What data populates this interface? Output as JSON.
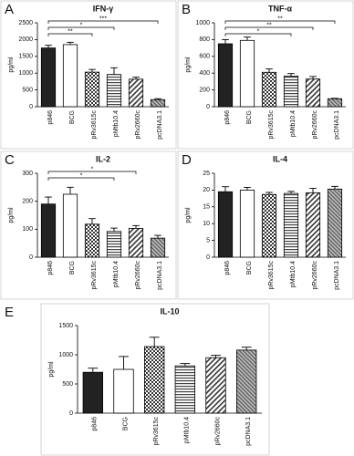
{
  "chart_data": [
    {
      "type": "bar",
      "panel": "A",
      "title": "IFN-γ",
      "y_label": "pg/ml",
      "categories": [
        "p846",
        "BCG",
        "pRv3615c",
        "pMtb10.4",
        "pRv2660c",
        "pcDNA3.1"
      ],
      "values": [
        1750,
        1850,
        1030,
        960,
        820,
        210
      ],
      "errors": [
        80,
        70,
        80,
        200,
        60,
        30
      ],
      "ylim": [
        0,
        2500
      ],
      "yticks": [
        0,
        500,
        1000,
        1500,
        2000,
        2500
      ],
      "brackets": [
        {
          "from": "p846",
          "to": "pcDNA3.1",
          "label": "***"
        },
        {
          "from": "p846",
          "to": "pMtb10.4",
          "label": "*"
        },
        {
          "from": "p846",
          "to": "pRv3615c",
          "label": "**"
        }
      ]
    },
    {
      "type": "bar",
      "panel": "B",
      "title": "TNF-α",
      "y_label": "pg/ml",
      "categories": [
        "p846",
        "BCG",
        "pRv3615c",
        "pMtb10.4",
        "pRv2660c",
        "pcDNA3.1"
      ],
      "values": [
        750,
        790,
        410,
        365,
        330,
        95
      ],
      "errors": [
        50,
        40,
        40,
        30,
        30,
        5
      ],
      "ylim": [
        0,
        1000
      ],
      "yticks": [
        0,
        200,
        400,
        600,
        800,
        1000
      ],
      "brackets": [
        {
          "from": "p846",
          "to": "pcDNA3.1",
          "label": "**"
        },
        {
          "from": "p846",
          "to": "pRv2660c",
          "label": "**"
        },
        {
          "from": "p846",
          "to": "pMtb10.4",
          "label": "*"
        }
      ]
    },
    {
      "type": "bar",
      "panel": "C",
      "title": "IL-2",
      "y_label": "pg/ml",
      "categories": [
        "p846",
        "BCG",
        "pRv3615c",
        "pMtb10.4",
        "pRv2660c",
        "pcDNA3.1"
      ],
      "values": [
        190,
        225,
        118,
        92,
        103,
        68
      ],
      "errors": [
        25,
        25,
        20,
        12,
        10,
        10
      ],
      "ylim": [
        0,
        300
      ],
      "yticks": [
        0,
        100,
        200,
        300
      ],
      "brackets": [
        {
          "from": "p846",
          "to": "pRv2660c",
          "label": "*"
        },
        {
          "from": "p846",
          "to": "pMtb10.4",
          "label": "*"
        }
      ]
    },
    {
      "type": "bar",
      "panel": "D",
      "title": "IL-4",
      "y_label": "pg/ml",
      "categories": [
        "p846",
        "BCG",
        "pRv3615c",
        "pMtb10.4",
        "pRv2660c",
        "pcDNA3.1"
      ],
      "values": [
        19.5,
        20,
        18.7,
        19,
        19.2,
        20.3
      ],
      "errors": [
        1.5,
        0.8,
        0.6,
        0.6,
        1.3,
        0.8
      ],
      "ylim": [
        0,
        25
      ],
      "yticks": [
        0,
        5,
        10,
        15,
        20,
        25
      ],
      "brackets": []
    },
    {
      "type": "bar",
      "panel": "E",
      "title": "IL-10",
      "y_label": "pg/ml",
      "categories": [
        "p846",
        "BCG",
        "pRv3615c",
        "pMtb10.4",
        "pRv2660c",
        "pcDNA3.1"
      ],
      "values": [
        700,
        750,
        1140,
        810,
        950,
        1080
      ],
      "errors": [
        70,
        220,
        160,
        40,
        40,
        50
      ],
      "ylim": [
        0,
        1500
      ],
      "yticks": [
        0,
        500,
        1000,
        1500
      ],
      "brackets": []
    }
  ]
}
